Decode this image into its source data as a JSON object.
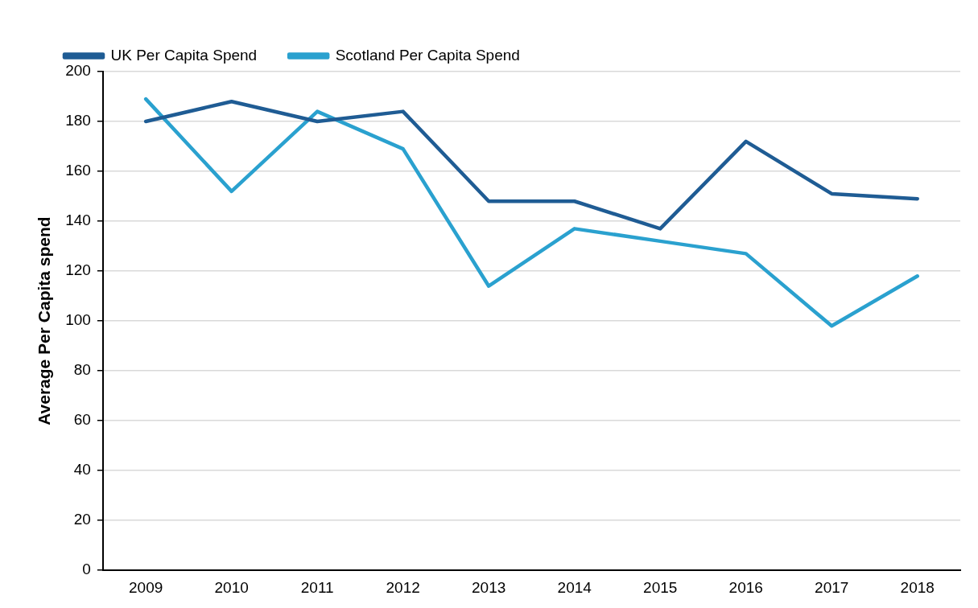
{
  "chart_data": {
    "type": "line",
    "ylabel": "Average Per Capita spend",
    "categories": [
      "2009",
      "2010",
      "2011",
      "2012",
      "2013",
      "2014",
      "2015",
      "2016",
      "2017",
      "2018"
    ],
    "series": [
      {
        "name": "UK Per Capita Spend",
        "color": "#1f5c94",
        "values": [
          180,
          188,
          180,
          184,
          148,
          148,
          137,
          172,
          151,
          149
        ]
      },
      {
        "name": "Scotland Per Capita Spend",
        "color": "#2aa1cf",
        "values": [
          189,
          152,
          184,
          169,
          114,
          137,
          132,
          127,
          98,
          118
        ]
      }
    ],
    "ylim": [
      0,
      200
    ],
    "yticks": [
      0,
      20,
      40,
      60,
      80,
      100,
      120,
      140,
      160,
      180,
      200
    ],
    "grid": "y",
    "legend": "top",
    "marker": "none",
    "line_style": "solid"
  }
}
